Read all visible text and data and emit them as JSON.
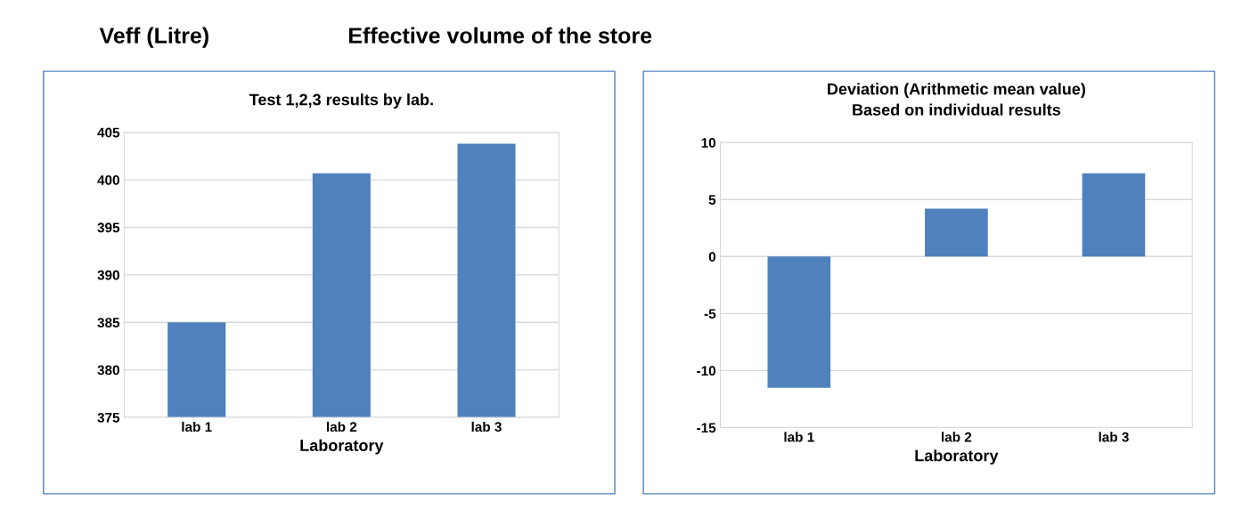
{
  "chart_data": [
    {
      "type": "bar",
      "title": "Test 1,2,3 results by lab.",
      "xlabel": "Laboratory",
      "categories": [
        "lab 1",
        "lab 2",
        "lab 3"
      ],
      "series": [
        {
          "color": "#4f81bd",
          "values": [
            385.0,
            400.7,
            403.8
          ]
        }
      ],
      "ylim": [
        375,
        405
      ],
      "yticks": [
        375,
        380,
        385,
        390,
        395,
        400,
        405
      ],
      "grid": "y",
      "annotations": [
        "Veff (Litre)",
        "Effective volume of the store"
      ]
    },
    {
      "type": "bar",
      "title": "Deviation (Arithmetic mean value)\nBased on individual results",
      "xlabel": "Laboratory",
      "categories": [
        "lab 1",
        "lab 2",
        "lab 3"
      ],
      "series": [
        {
          "color": "#4f81bd",
          "values": [
            -11.5,
            4.2,
            7.3
          ]
        }
      ],
      "ylim": [
        -15,
        10
      ],
      "yticks": [
        -15,
        -10,
        -5,
        0,
        5,
        10
      ],
      "grid": "y"
    }
  ]
}
